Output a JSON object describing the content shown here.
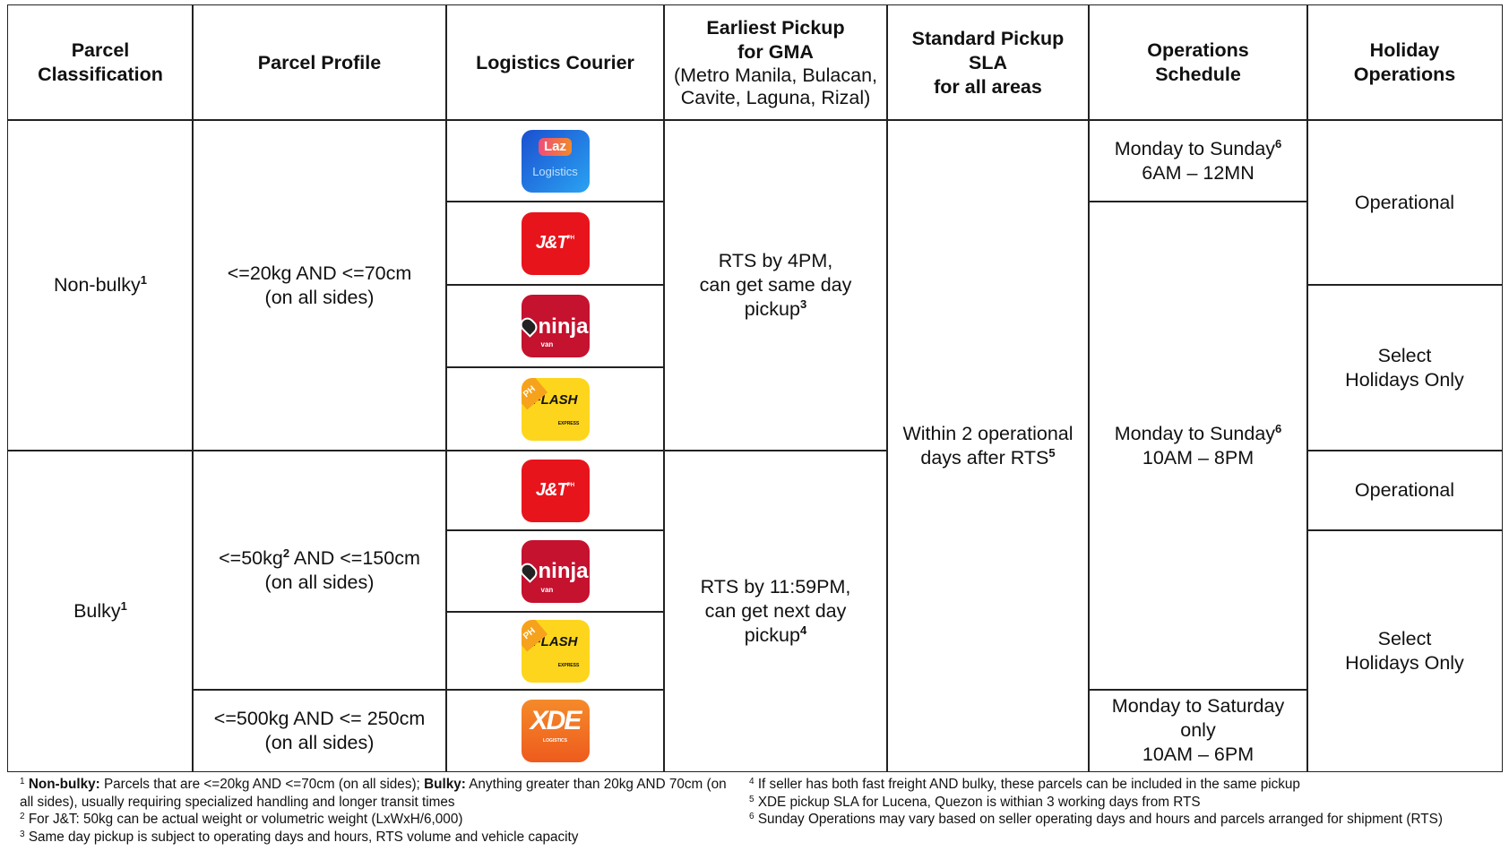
{
  "header": [
    {
      "lines": [
        "Parcel",
        "Classification"
      ]
    },
    {
      "lines": [
        "Parcel Profile"
      ]
    },
    {
      "lines": [
        "Logistics Courier"
      ]
    },
    {
      "lines": [
        "Earliest Pickup",
        "for GMA"
      ],
      "note_lines": [
        "(Metro Manila, Bulacan,",
        "Cavite, Laguna, Rizal)"
      ]
    },
    {
      "lines": [
        "Standard Pickup",
        "SLA",
        "for all areas"
      ]
    },
    {
      "lines": [
        "Operations",
        "Schedule"
      ]
    },
    {
      "lines": [
        "Holiday",
        "Operations"
      ]
    }
  ],
  "classification": [
    {
      "text": "Non-bulky",
      "sup": "1"
    },
    {
      "text": "Bulky",
      "sup": "1"
    }
  ],
  "profile": [
    {
      "lines": [
        "<=20kg AND <=70cm",
        "(on all sides)"
      ]
    },
    {
      "pre": "<=50kg",
      "sup": "2",
      "post": " AND <=150cm",
      "line2": "(on all sides)"
    },
    {
      "lines": [
        "<=500kg AND <= 250cm",
        "(on all sides)"
      ]
    }
  ],
  "couriers": [
    {
      "name": "Laz",
      "sub": "Logistics"
    },
    {
      "name": "J&T",
      "sub": "PH"
    },
    {
      "name": "ninja",
      "sub": "van"
    },
    {
      "name": "FLASH",
      "sub": "EXPRESS",
      "badge": "PH"
    },
    {
      "name": "J&T",
      "sub": "PH"
    },
    {
      "name": "ninja",
      "sub": "van"
    },
    {
      "name": "FLASH",
      "sub": "EXPRESS",
      "badge": "PH"
    },
    {
      "name": "XDE",
      "sub": "LOGISTICS"
    }
  ],
  "pickup": [
    {
      "lines": [
        "RTS by 4PM,",
        "can get same day",
        "pickup"
      ],
      "sup": "3"
    },
    {
      "lines": [
        "RTS by 11:59PM,",
        "can get next day",
        "pickup"
      ],
      "sup": "4"
    }
  ],
  "sla": {
    "lines": [
      "Within 2 operational",
      "days after RTS"
    ],
    "sup": "5"
  },
  "schedule": [
    {
      "lines": [
        "Monday to Sunday",
        "6AM – 12MN"
      ],
      "sup": "6"
    },
    {
      "lines": [
        "Monday to Sunday",
        "10AM – 8PM"
      ],
      "sup": "6"
    },
    {
      "lines": [
        "Monday to Saturday",
        "only",
        "10AM – 6PM"
      ]
    }
  ],
  "holiday": [
    "Operational",
    "Select Holidays Only",
    "Operational",
    "Select Holidays Only"
  ],
  "footnotes": [
    {
      "num": "1",
      "label1": "Non-bulky:",
      "text1": " Parcels that are <=20kg AND <=70cm (on all sides); ",
      "label2": "Bulky:",
      "text2": " Anything greater than 20kg AND 70cm (on all sides), usually requiring specialized handling and longer transit times"
    },
    {
      "num": "2",
      "text": "For J&T: 50kg can be actual weight or volumetric weight (LxWxH/6,000)"
    },
    {
      "num": "3",
      "text": "Same day pickup is subject to operating days and hours, RTS volume and vehicle capacity"
    },
    {
      "num": "4",
      "text": "If seller has both fast freight AND bulky, these parcels can be included in the same pickup"
    },
    {
      "num": "5",
      "text": "XDE pickup SLA for Lucena, Quezon is withian 3 working days from RTS"
    },
    {
      "num": "6",
      "text": "Sunday Operations may vary based on seller operating days and hours and parcels arranged for shipment (RTS)"
    }
  ]
}
